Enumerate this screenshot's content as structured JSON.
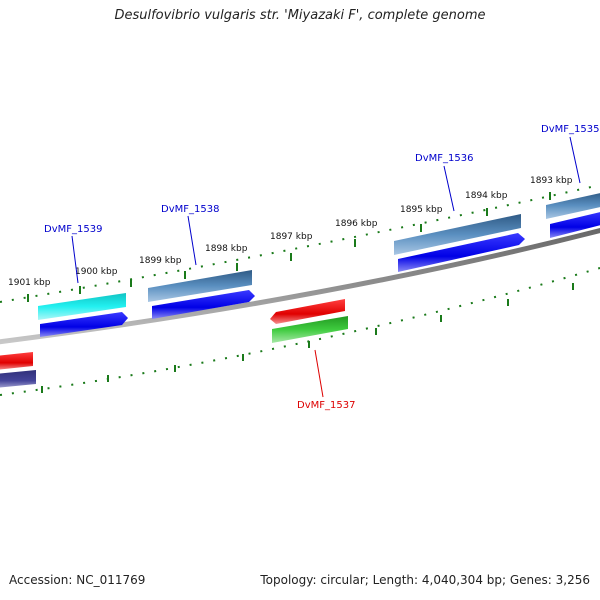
{
  "title": "Desulfovibrio vulgaris str. 'Miyazaki F', complete genome",
  "footer": {
    "accession": "Accession: NC_011769",
    "summary": "Topology: circular; Length: 4,040,304 bp; Genes: 3,256"
  },
  "tick_labels": [
    "1901 kbp",
    "1900 kbp",
    "1899 kbp",
    "1898 kbp",
    "1897 kbp",
    "1896 kbp",
    "1895 kbp",
    "1894 kbp",
    "1893 kbp"
  ],
  "genes": [
    {
      "label": "DvMF_1539",
      "color": "#0000cc"
    },
    {
      "label": "DvMF_1538",
      "color": "#0000cc"
    },
    {
      "label": "DvMF_1537",
      "color": "#dd0000"
    },
    {
      "label": "DvMF_1536",
      "color": "#0000cc"
    },
    {
      "label": "DvMF_1535",
      "color": "#0000cc"
    }
  ],
  "colors": {
    "backbone": "#808080",
    "ticks": "#1a7a1a",
    "cds_forward": "#0000ee",
    "cds_reverse": "#ee0000",
    "gene_steelblue": "#4f86b8",
    "gene_cyan": "#00e0e0",
    "gene_green": "#33bb33",
    "gene_navy": "#3a3a8c"
  }
}
